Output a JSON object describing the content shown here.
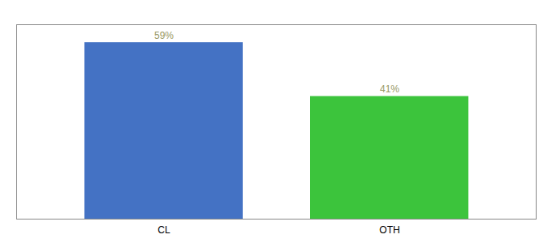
{
  "chart_data": {
    "type": "bar",
    "categories": [
      "CL",
      "OTH"
    ],
    "values": [
      59,
      41
    ],
    "colors": [
      "#4472C4",
      "#3CC43C"
    ],
    "ylim": [
      0,
      65
    ],
    "yticks": [],
    "data_labels": true,
    "value_labels": [
      "59%",
      "41%"
    ],
    "tick_labels": "x"
  }
}
